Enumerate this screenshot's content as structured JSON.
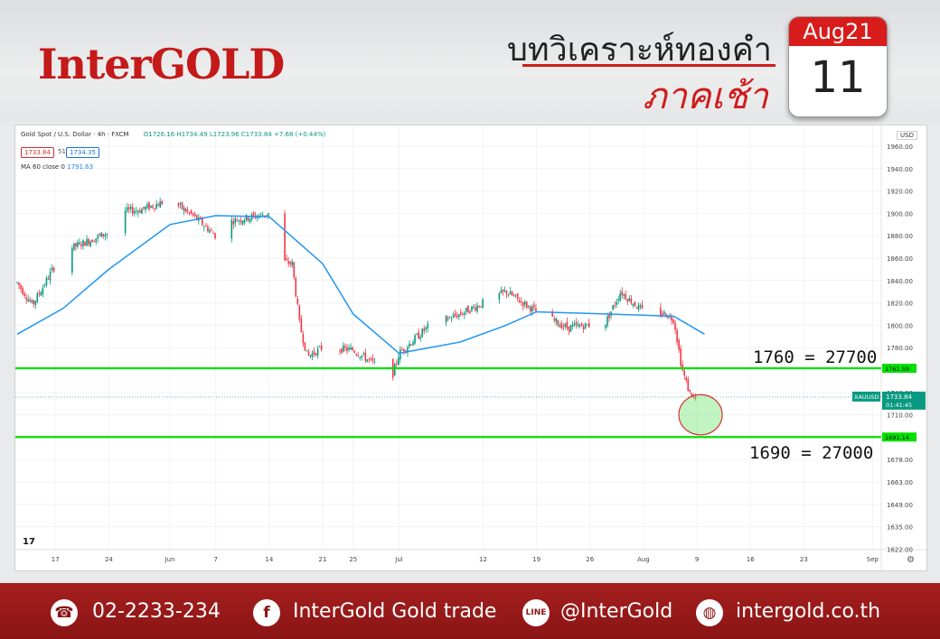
{
  "header": {
    "brand": "InterGOLD",
    "title": "บทวิเคราะห์ทองคำ",
    "subtitle": "ภาคเช้า",
    "calendar_month": "Aug21",
    "calendar_day": "11"
  },
  "legend": {
    "symbol": "Gold Spot / U.S. Dollar · 4h · FXCM",
    "ohlc": "O1726.16 H1734.49 L1723.96 C1733.84 +7.68 (+0.44%)",
    "sell": "1733.84",
    "spread": "51",
    "buy": "1734.35",
    "ma_label": "MA 60 close 0",
    "ma_value": "1791.63",
    "currency": "USD",
    "logo": "17"
  },
  "colors": {
    "up": "#089981",
    "down": "#f23645",
    "ma": "#2196f3",
    "level_line": "#00e000",
    "brand_red": "#c41a1a",
    "footer": "#9a1a1a"
  },
  "chart_data": {
    "type": "candlestick",
    "timeframe": "4h",
    "x_ticks": [
      "17",
      "24",
      "Jun",
      "7",
      "14",
      "21",
      "25",
      "Jul",
      "12",
      "19",
      "26",
      "Aug",
      "9",
      "16",
      "23",
      "Sep"
    ],
    "y_ticks": [
      "1960.00",
      "1940.00",
      "1920.00",
      "1900.00",
      "1880.00",
      "1860.00",
      "1840.00",
      "1820.00",
      "1800.00",
      "1780.00",
      "1760.00",
      "1740.00",
      "1710.00",
      "1691.00",
      "1678.00",
      "1663.00",
      "1649.00",
      "1635.00",
      "1622.00"
    ],
    "path_estimate": [
      {
        "x": "May 12",
        "y": 1838
      },
      {
        "x": "May 14",
        "y": 1818
      },
      {
        "x": "May 18",
        "y": 1866
      },
      {
        "x": "May 24",
        "y": 1883
      },
      {
        "x": "May 26",
        "y": 1902
      },
      {
        "x": "May 28",
        "y": 1903
      },
      {
        "x": "Jun 1",
        "y": 1912
      },
      {
        "x": "Jun 4",
        "y": 1898
      },
      {
        "x": "Jun 7",
        "y": 1880
      },
      {
        "x": "Jun 9",
        "y": 1893
      },
      {
        "x": "Jun 14",
        "y": 1900
      },
      {
        "x": "Jun 15",
        "y": 1858
      },
      {
        "x": "Jun 17",
        "y": 1855
      },
      {
        "x": "Jun 18",
        "y": 1800
      },
      {
        "x": "Jun 19",
        "y": 1772
      },
      {
        "x": "Jun 21",
        "y": 1780
      },
      {
        "x": "Jun 25",
        "y": 1778
      },
      {
        "x": "Jun 29",
        "y": 1760
      },
      {
        "x": "Jun 30",
        "y": 1752
      },
      {
        "x": "Jul 1",
        "y": 1775
      },
      {
        "x": "Jul 5",
        "y": 1800
      },
      {
        "x": "Jul 9",
        "y": 1810
      },
      {
        "x": "Jul 15",
        "y": 1830
      },
      {
        "x": "Jul 19",
        "y": 1812
      },
      {
        "x": "Jul 23",
        "y": 1798
      },
      {
        "x": "Jul 28",
        "y": 1802
      },
      {
        "x": "Jul 30",
        "y": 1830
      },
      {
        "x": "Aug 2",
        "y": 1812
      },
      {
        "x": "Aug 5",
        "y": 1810
      },
      {
        "x": "Aug 6",
        "y": 1805
      },
      {
        "x": "Aug 7",
        "y": 1762
      },
      {
        "x": "Aug 8",
        "y": 1740
      },
      {
        "x": "Aug 9",
        "y": 1728
      },
      {
        "x": "Aug 10",
        "y": 1733.84
      }
    ],
    "ma": {
      "name": "MA 60 close 0",
      "points": [
        {
          "x": "May 12",
          "y": 1792
        },
        {
          "x": "May 18",
          "y": 1815
        },
        {
          "x": "May 24",
          "y": 1850
        },
        {
          "x": "Jun 1",
          "y": 1890
        },
        {
          "x": "Jun 7",
          "y": 1898
        },
        {
          "x": "Jun 14",
          "y": 1897
        },
        {
          "x": "Jun 21",
          "y": 1855
        },
        {
          "x": "Jun 25",
          "y": 1810
        },
        {
          "x": "Jul 1",
          "y": 1775
        },
        {
          "x": "Jul 9",
          "y": 1785
        },
        {
          "x": "Jul 15",
          "y": 1800
        },
        {
          "x": "Jul 19",
          "y": 1812
        },
        {
          "x": "Aug 2",
          "y": 1809
        },
        {
          "x": "Aug 6",
          "y": 1808
        },
        {
          "x": "Aug 10",
          "y": 1792
        }
      ]
    },
    "horizontal_levels": [
      {
        "price": 1761.59,
        "tag": "1761.59",
        "annotation": "1760 = 27700"
      },
      {
        "price": 1691.14,
        "tag": "1691.14",
        "annotation": "1690 = 27000"
      }
    ],
    "current": {
      "label": "XAUUSD",
      "price": "1733.84",
      "countdown": "01:41:45"
    },
    "highlight": {
      "shape": "ellipse",
      "center_x": "Aug 9",
      "y_low": 1693,
      "y_high": 1737
    }
  },
  "footer": {
    "phone": "02-2233-234",
    "facebook": "InterGold Gold trade",
    "line": "@InterGold",
    "website": "intergold.co.th"
  }
}
